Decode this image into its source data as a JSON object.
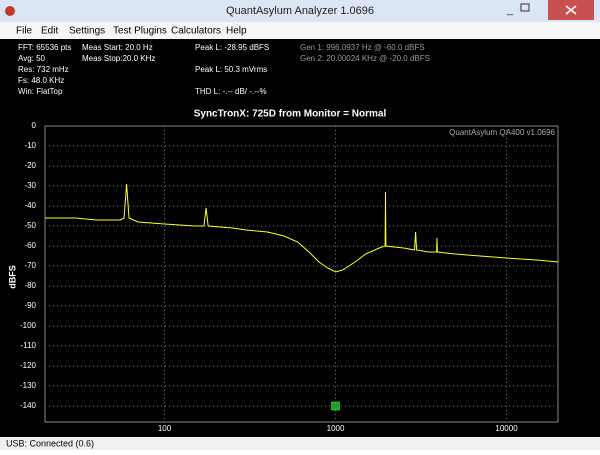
{
  "window": {
    "title": "QuantAsylum Analyzer 1.0696"
  },
  "menu": [
    "File",
    "Edit",
    "Settings",
    "Test Plugins",
    "Calculators",
    "Help"
  ],
  "info": {
    "acquisition": [
      "FFT: 65536 pts",
      "Avg: 50",
      "Res: 732 mHz",
      "Fs: 48.0 KHz",
      "Win: FlatTop"
    ],
    "measure": [
      "Meas Start: 20.0 Hz",
      "Meas Stop:20.0 KHz"
    ],
    "peak": [
      "Peak L: -28.95 dBFS",
      "Peak L: 50.3 mVrms",
      "THD L: -.-- dB/ -.--%"
    ],
    "generator": [
      "Gen 1: 996.0937 Hz @ -60.0  dBFS",
      "Gen 2: 20.00024 KHz @ -20.0  dBFS"
    ]
  },
  "status": "USB: Connected  (0.6)",
  "chart_data": {
    "type": "line",
    "title": "SyncTronX: 725D from Monitor =  Normal",
    "ylabel": "dBFS",
    "watermark": "QuantAsylum QA400 v1.0696",
    "x": [
      20,
      30,
      40,
      50,
      55,
      58,
      60,
      62,
      70,
      100,
      150,
      170,
      175,
      180,
      250,
      300,
      400,
      500,
      600,
      700,
      800,
      900,
      1000,
      1100,
      1300,
      1500,
      1800,
      1950,
      1960,
      1970,
      2500,
      2900,
      2940,
      2980,
      3500,
      3900,
      3920,
      3940,
      5000,
      7000,
      10000,
      15000,
      20000
    ],
    "values": [
      -46,
      -46,
      -47,
      -47,
      -47,
      -46,
      -29,
      -46,
      -48,
      -49,
      -50,
      -50,
      -41,
      -50,
      -51,
      -52,
      -53,
      -55,
      -58,
      -63,
      -68,
      -71,
      -73,
      -72,
      -68,
      -64,
      -61,
      -60,
      -33,
      -60,
      -61,
      -62,
      -53,
      -62,
      -63,
      -63,
      -56,
      -63,
      -64,
      -65,
      -66,
      -67,
      -68
    ],
    "color": "#ffff33",
    "log_x": true,
    "grid": true,
    "xlim": [
      20,
      20000
    ],
    "ylim": [
      -148,
      0
    ],
    "xticks": [
      100,
      1000,
      10000
    ],
    "yticks": [
      0,
      -10,
      -20,
      -30,
      -40,
      -50,
      -60,
      -70,
      -80,
      -90,
      -100,
      -110,
      -120,
      -130,
      -140
    ],
    "marker": {
      "x": 1000,
      "y": -140,
      "color": "#1e9e1e"
    }
  }
}
